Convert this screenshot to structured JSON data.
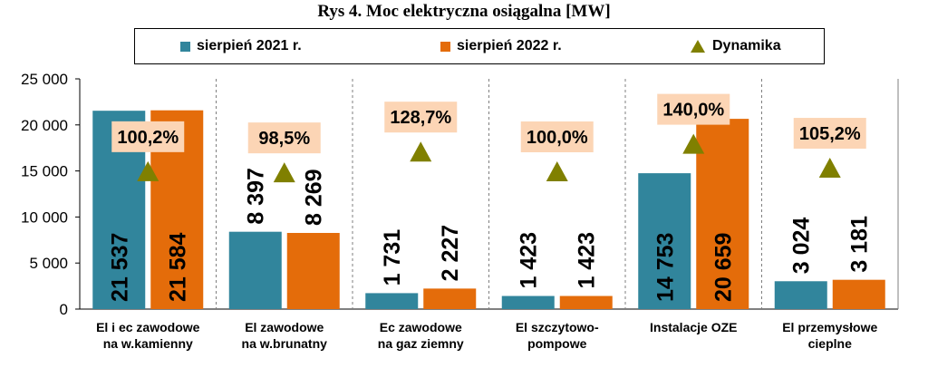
{
  "title": "Rys 4. Moc elektryczna osiągalna [MW]",
  "legend": {
    "series_2021": "sierpień 2021 r.",
    "series_2022": "sierpień 2022 r.",
    "dynamics": "Dynamika"
  },
  "colors": {
    "series_2021": "#31859c",
    "series_2022": "#e46c0a",
    "dynamics": "#808000",
    "dynamics_label_bg": "#fcd5b5"
  },
  "chart_data": {
    "type": "bar",
    "title": "Rys 4. Moc elektryczna osiągalna [MW]",
    "categories": [
      [
        "El i ec zawodowe",
        "na w.kamienny"
      ],
      [
        "El zawodowe",
        "na w.brunatny"
      ],
      [
        "Ec zawodowe",
        "na gaz ziemny"
      ],
      [
        "El szczytowo-",
        "pompowe"
      ],
      [
        "Instalacje OZE"
      ],
      [
        "El przemysłowe",
        "cieplne"
      ]
    ],
    "series": [
      {
        "name": "sierpień 2021 r.",
        "values": [
          21537,
          8397,
          1731,
          1423,
          14753,
          3024
        ],
        "labels": [
          "21 537",
          "8 397",
          "1 731",
          "1 423",
          "14 753",
          "3 024"
        ]
      },
      {
        "name": "sierpień 2022 r.",
        "values": [
          21584,
          8269,
          2227,
          1423,
          20659,
          3181
        ],
        "labels": [
          "21 584",
          "8 269",
          "2 227",
          "1 423",
          "20 659",
          "3 181"
        ]
      }
    ],
    "dynamics": {
      "name": "Dynamika",
      "values": [
        100.2,
        98.5,
        128.7,
        100.0,
        140.0,
        105.2
      ],
      "labels": [
        "100,2%",
        "98,5%",
        "128,7%",
        "100,0%",
        "140,0%",
        "105,2%"
      ]
    },
    "ylim": [
      0,
      25000
    ],
    "yticks": [
      0,
      5000,
      10000,
      15000,
      20000,
      25000
    ],
    "ytick_labels": [
      "0",
      "5 000",
      "10 000",
      "15 000",
      "20 000",
      "25 000"
    ],
    "grid": "vertical dashed separators",
    "legend_position": "top"
  }
}
